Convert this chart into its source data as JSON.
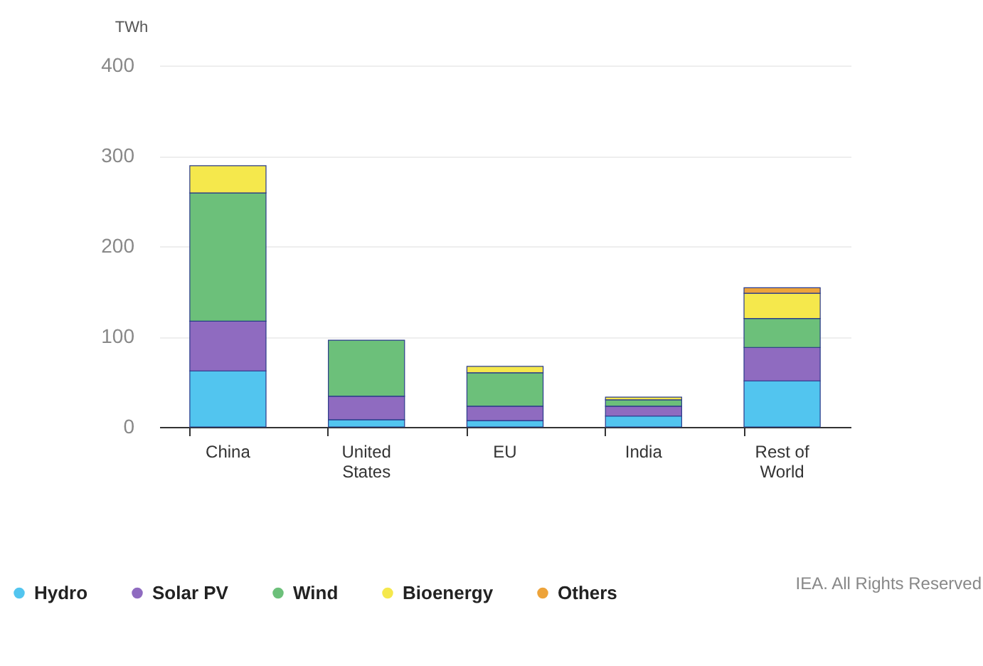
{
  "chart_data": {
    "type": "bar",
    "stacked": true,
    "ylabel": "TWh",
    "categories": [
      "China",
      "United States",
      "EU",
      "India",
      "Rest of World"
    ],
    "series": [
      {
        "name": "Hydro",
        "color": "#52c5ef",
        "values": [
          62,
          8,
          7,
          12,
          51
        ]
      },
      {
        "name": "Solar PV",
        "color": "#8f6bc0",
        "values": [
          55,
          26,
          16,
          11,
          37
        ]
      },
      {
        "name": "Wind",
        "color": "#6cc07a",
        "values": [
          142,
          62,
          37,
          7,
          32
        ]
      },
      {
        "name": "Bioenergy",
        "color": "#f5e84c",
        "values": [
          30,
          null,
          7,
          3,
          28
        ]
      },
      {
        "name": "Others",
        "color": "#eda33a",
        "values": [
          null,
          null,
          null,
          null,
          6
        ]
      }
    ],
    "ylim": [
      0,
      400
    ],
    "yticks": [
      0,
      100,
      200,
      300,
      400
    ],
    "grid": "y",
    "legend": "bottom left",
    "annotations": [
      "IEA. All Rights Reserved"
    ]
  }
}
